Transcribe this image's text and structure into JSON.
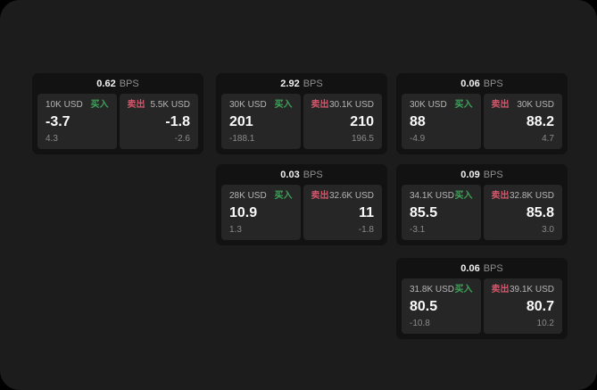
{
  "labels": {
    "unit": "BPS",
    "buy": "买入",
    "sell": "卖出"
  },
  "colors": {
    "buy_green": "#3fa35a",
    "sell_red": "#d4566b",
    "surface": "#1c1c1c",
    "card": "#121212",
    "subpanel": "#262626"
  },
  "cards": [
    {
      "bps": "0.62",
      "buy": {
        "amount": "10K USD",
        "value": "-3.7",
        "delta": "4.3"
      },
      "sell": {
        "amount": "5.5K USD",
        "value": "-1.8",
        "delta": "-2.6"
      }
    },
    {
      "bps": "2.92",
      "buy": {
        "amount": "30K USD",
        "value": "201",
        "delta": "-188.1"
      },
      "sell": {
        "amount": "30.1K USD",
        "value": "210",
        "delta": "196.5"
      }
    },
    {
      "bps": "0.06",
      "buy": {
        "amount": "30K USD",
        "value": "88",
        "delta": "-4.9"
      },
      "sell": {
        "amount": "30K USD",
        "value": "88.2",
        "delta": "4.7"
      }
    },
    {
      "bps": "0.03",
      "buy": {
        "amount": "28K USD",
        "value": "10.9",
        "delta": "1.3"
      },
      "sell": {
        "amount": "32.6K USD",
        "value": "11",
        "delta": "-1.8"
      }
    },
    {
      "bps": "0.09",
      "buy": {
        "amount": "34.1K USD",
        "value": "85.5",
        "delta": "-3.1"
      },
      "sell": {
        "amount": "32.8K USD",
        "value": "85.8",
        "delta": "3.0"
      }
    },
    {
      "bps": "0.06",
      "buy": {
        "amount": "31.8K USD",
        "value": "80.5",
        "delta": "-10.8"
      },
      "sell": {
        "amount": "39.1K USD",
        "value": "80.7",
        "delta": "10.2"
      }
    }
  ]
}
